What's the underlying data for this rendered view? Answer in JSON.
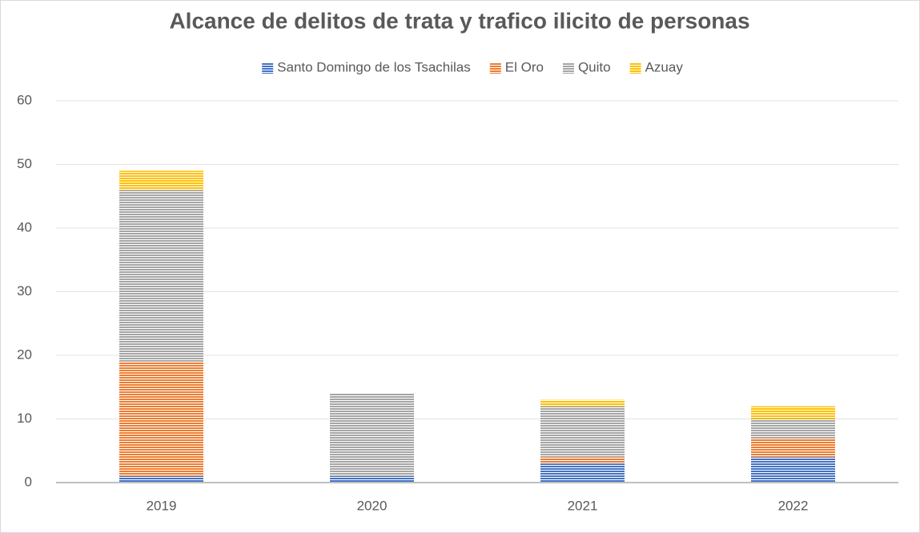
{
  "chart_data": {
    "type": "stacked_bar",
    "title": "Alcance de delitos de trata y trafico ilicito de personas",
    "categories": [
      "2019",
      "2020",
      "2021",
      "2022"
    ],
    "series": [
      {
        "name": "Santo Domingo de los Tsachilas",
        "color": "#4472c4",
        "values": [
          1,
          1,
          3,
          4
        ]
      },
      {
        "name": "El Oro",
        "color": "#ed7d31",
        "values": [
          18,
          0,
          1,
          3
        ]
      },
      {
        "name": "Quito",
        "color": "#a5a5a5",
        "values": [
          27,
          13,
          8,
          3
        ]
      },
      {
        "name": "Azuay",
        "color": "#ffc000",
        "values": [
          3,
          0,
          1,
          2
        ]
      }
    ],
    "ylim": [
      0,
      60
    ],
    "yticks": [
      0,
      10,
      20,
      30,
      40,
      50,
      60
    ],
    "grid": true,
    "legend": "top"
  }
}
